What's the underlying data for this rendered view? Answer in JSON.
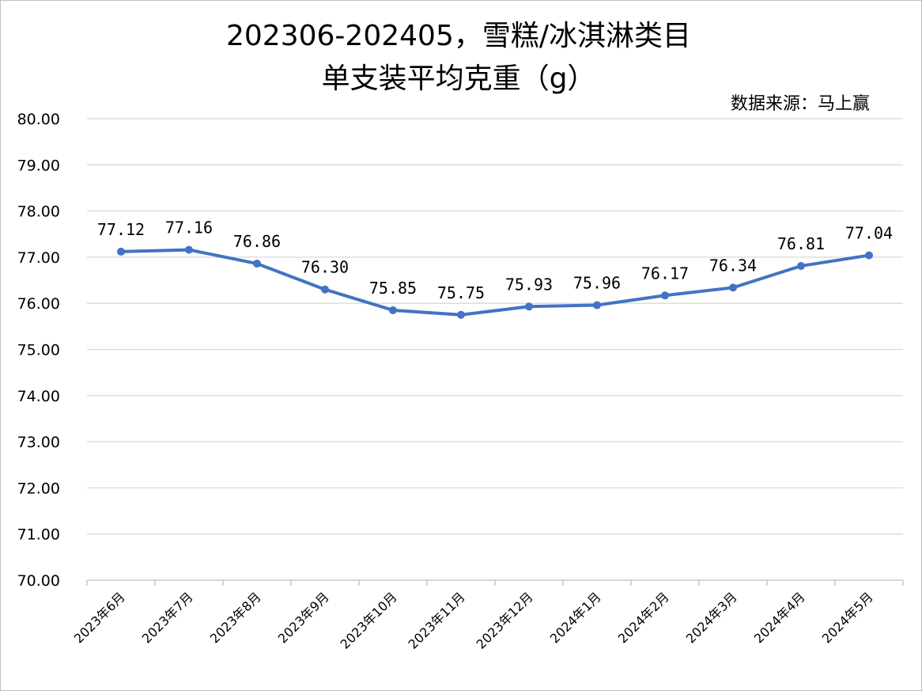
{
  "chart_data": {
    "type": "line",
    "title_line1": "202306-202405，雪糕/冰淇淋类目",
    "title_line2": "单支装平均克重（g）",
    "source": "数据来源：马上赢",
    "categories": [
      "2023年6月",
      "2023年7月",
      "2023年8月",
      "2023年9月",
      "2023年10月",
      "2023年11月",
      "2023年12月",
      "2024年1月",
      "2024年2月",
      "2024年3月",
      "2024年4月",
      "2024年5月"
    ],
    "values": [
      77.12,
      77.16,
      76.86,
      76.3,
      75.85,
      75.75,
      75.93,
      75.96,
      76.17,
      76.34,
      76.81,
      77.04
    ],
    "ylim": [
      70,
      80
    ],
    "ytick_step": 1,
    "grid": true,
    "data_labels": true,
    "line_color": "#4472C4"
  }
}
